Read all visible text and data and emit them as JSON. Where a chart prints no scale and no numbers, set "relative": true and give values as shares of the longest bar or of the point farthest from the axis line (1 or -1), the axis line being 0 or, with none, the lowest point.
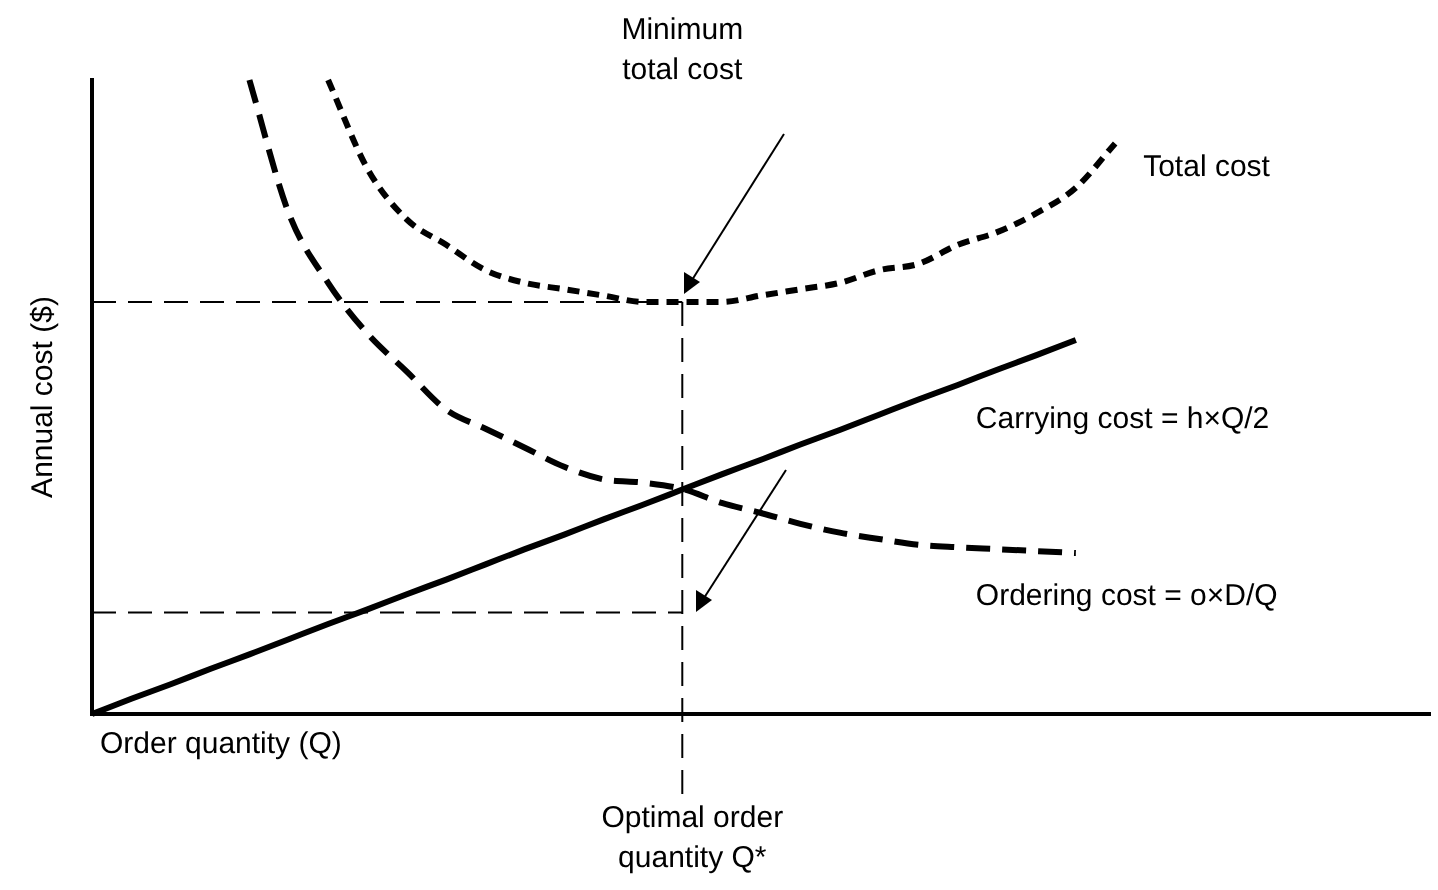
{
  "chart_data": {
    "type": "line",
    "relative": true,
    "xlabel": "Order quantity (Q)",
    "ylabel": "Annual cost ($)",
    "categories": [
      null,
      null,
      null,
      null,
      null,
      null,
      null,
      null,
      null,
      null,
      null,
      null,
      null,
      null,
      null,
      null,
      null,
      null,
      null,
      null,
      null,
      null,
      null,
      null,
      null,
      null,
      null,
      null,
      null,
      null,
      null,
      null,
      null,
      null,
      null
    ],
    "series": [
      {
        "name": "Total cost",
        "color": "#000000",
        "line_style": "dotted",
        "values": [
          null,
          null,
          null,
          null,
          null,
          null,
          1.0,
          0.86,
          0.78,
          0.74,
          0.7,
          0.68,
          0.67,
          0.66,
          0.65,
          0.65,
          0.65,
          0.66,
          0.67,
          0.68,
          0.7,
          0.71,
          0.74,
          0.76,
          0.79,
          0.83,
          0.9,
          null,
          null,
          null,
          null,
          null,
          null,
          null,
          null
        ]
      },
      {
        "name": "Carrying cost = h×Q/2",
        "color": "#000000",
        "line_style": "solid",
        "values": [
          0,
          0.024,
          0.047,
          0.071,
          0.094,
          0.118,
          0.142,
          0.165,
          0.189,
          0.212,
          0.236,
          0.26,
          0.283,
          0.307,
          0.33,
          0.354,
          0.378,
          0.401,
          0.425,
          0.448,
          0.472,
          0.496,
          0.519,
          0.543,
          0.566,
          0.59,
          null,
          null,
          null,
          null,
          null,
          null,
          null,
          null,
          null
        ]
      },
      {
        "name": "Ordering cost = o×D/Q",
        "color": "#000000",
        "line_style": "dashed",
        "values": [
          null,
          null,
          null,
          null,
          1.0,
          0.79,
          0.68,
          0.6,
          0.54,
          0.48,
          0.45,
          0.42,
          0.39,
          0.37,
          0.365,
          0.355,
          0.333,
          0.317,
          0.3,
          0.286,
          0.276,
          0.267,
          0.263,
          0.26,
          0.257,
          0.254,
          null,
          null,
          null,
          null,
          null,
          null,
          null,
          null,
          null
        ]
      }
    ],
    "ref_lines": [
      {
        "axis": "y",
        "value": 0.65,
        "line_style": "dashed"
      },
      {
        "axis": "y",
        "value": 0.16,
        "line_style": "dashed"
      }
    ],
    "annotations": [
      "Minimum total cost",
      "Optimal order quantity Q*"
    ],
    "grid": false,
    "legend": false
  }
}
